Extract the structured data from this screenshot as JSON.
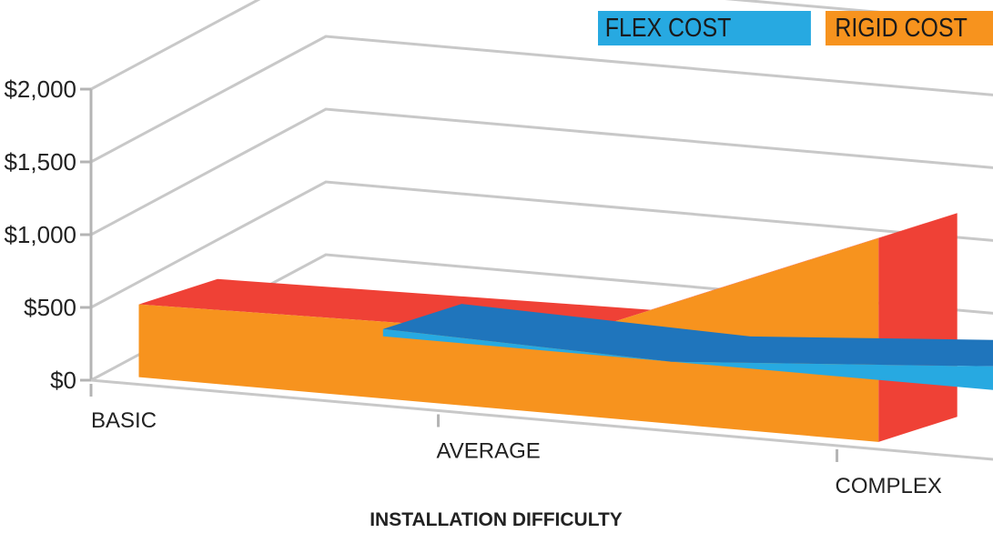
{
  "chart_data": {
    "type": "area",
    "title": "",
    "xlabel": "INSTALLATION DIFFICULTY",
    "ylabel": "",
    "categories": [
      "BASIC",
      "AVERAGE",
      "COMPLEX"
    ],
    "y_ticks": [
      "$0",
      "$500",
      "$1,000",
      "$1,500",
      "$2,000"
    ],
    "ylim": [
      0,
      2000
    ],
    "series": [
      {
        "name": "FLEX COST",
        "values": [
          50,
          0,
          200
        ],
        "color": "#27a9e1",
        "side_color": "#1f75bc"
      },
      {
        "name": "RIGID COST",
        "values": [
          500,
          550,
          1400
        ],
        "color": "#f7931e",
        "side_color": "#ef4136"
      }
    ],
    "legend_position": "top-right",
    "grid": true
  }
}
